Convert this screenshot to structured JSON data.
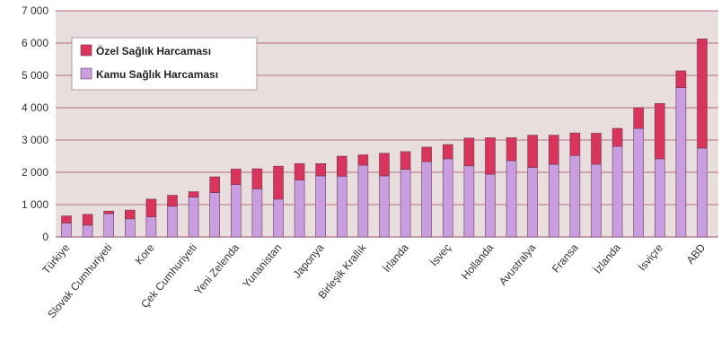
{
  "colors": {
    "plot_bg": "#e9dede",
    "grid": "#b86e7e",
    "private": "#d8345c",
    "public": "#c89ee0",
    "bar_stroke": "#6e3a56"
  },
  "legend": {
    "private_label": "Özel Sağlık Harcaması",
    "public_label": "Kamu Sağlık Harcaması"
  },
  "chart_data": {
    "type": "bar",
    "stacked": true,
    "legend_position": "top-left",
    "grid": true,
    "ylim": [
      0,
      7000
    ],
    "yticks": [
      "0",
      "1 000",
      "2 000",
      "3 000",
      "4 000",
      "5 000",
      "6 000",
      "7 000"
    ],
    "ytick_values": [
      0,
      1000,
      2000,
      3000,
      4000,
      5000,
      6000,
      7000
    ],
    "categories": [
      "Türkiye",
      "",
      "Slovak Cumhuriyeti",
      "",
      "Kore",
      "",
      "Çek Cumhuriyeti",
      "",
      "Yeni Zelenda",
      "",
      "Yunanistan",
      "",
      "Japonya",
      "",
      "Birleşik Krallık",
      "",
      "İrlanda",
      "",
      "İsveç",
      "",
      "Hollanda",
      "",
      "Avustralya",
      "",
      "Fransa",
      "",
      "İzlanda",
      "",
      "İsviçre",
      "",
      "ABD"
    ],
    "series": [
      {
        "name": "Kamu Sağlık Harcaması",
        "values": [
          430,
          360,
          720,
          560,
          620,
          950,
          1230,
          1370,
          1620,
          1490,
          1170,
          1760,
          1890,
          1880,
          2220,
          1890,
          2090,
          2330,
          2420,
          2200,
          1940,
          2360,
          2150,
          2250,
          2520,
          2250,
          2800,
          3360,
          2420,
          4620,
          2750
        ]
      },
      {
        "name": "Özel Sağlık Harcaması",
        "values": [
          220,
          340,
          80,
          270,
          550,
          340,
          170,
          490,
          480,
          620,
          1020,
          510,
          380,
          620,
          320,
          700,
          550,
          450,
          440,
          860,
          1130,
          710,
          1000,
          900,
          700,
          960,
          560,
          640,
          1710,
          520,
          3380
        ]
      }
    ]
  }
}
